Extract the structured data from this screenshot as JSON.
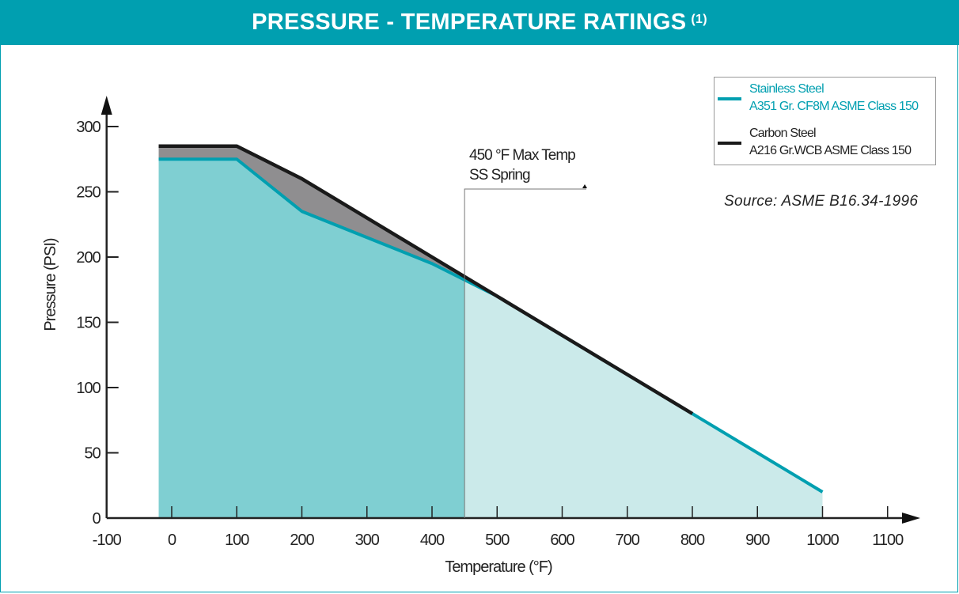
{
  "header": {
    "title": "PRESSURE - TEMPERATURE RATINGS",
    "footnote": "(1)"
  },
  "legend": {
    "items": [
      {
        "line1": "Stainless Steel",
        "line2": "A351 Gr. CF8M ASME Class 150",
        "color": "#009fb0"
      },
      {
        "line1": "Carbon Steel",
        "line2": "A216 Gr.WCB ASME Class 150",
        "color": "#1a1a1a"
      }
    ]
  },
  "source": "Source: ASME B16.34-1996",
  "annotation": {
    "line1": "450 °F Max Temp",
    "line2": "SS Spring",
    "x_value": 450
  },
  "chart_data": {
    "type": "area",
    "title": "PRESSURE - TEMPERATURE RATINGS (1)",
    "xlabel": "Temperature (°F)",
    "ylabel": "Pressure (PSI)",
    "xlim": [
      -100,
      1150
    ],
    "ylim": [
      0,
      310
    ],
    "xticks": [
      -100,
      0,
      100,
      200,
      300,
      400,
      500,
      600,
      700,
      800,
      900,
      1000,
      1100
    ],
    "yticks": [
      0,
      50,
      100,
      150,
      200,
      250,
      300
    ],
    "series": [
      {
        "name": "Stainless Steel A351 Gr. CF8M ASME Class 150",
        "color": "#009fb0",
        "x": [
          -20,
          100,
          200,
          300,
          400,
          500,
          600,
          700,
          800,
          900,
          1000
        ],
        "y": [
          275,
          275,
          235,
          215,
          195,
          170,
          140,
          110,
          80,
          50,
          20
        ]
      },
      {
        "name": "Carbon Steel A216 Gr.WCB ASME Class 150",
        "color": "#1a1a1a",
        "x": [
          -20,
          100,
          200,
          300,
          400,
          500,
          600,
          700,
          800
        ],
        "y": [
          285,
          285,
          260,
          230,
          200,
          170,
          140,
          110,
          80
        ]
      }
    ],
    "fills": {
      "ss_below_450": "#7fcfd2",
      "ss_above_450": "#cbeaea",
      "cs_excess": "#8f8e90"
    },
    "grid": false,
    "legend_position": "top-right"
  }
}
